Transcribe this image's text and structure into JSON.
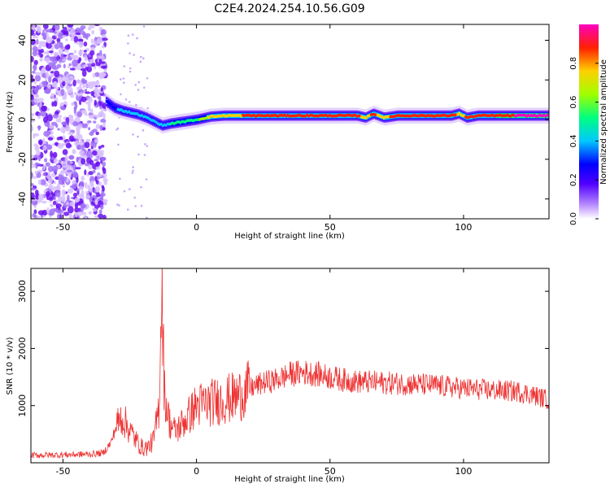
{
  "figure_title": "C2E4.2024.254.10.56.G09",
  "chart_data": [
    {
      "type": "heatmap",
      "title": "C2E4.2024.254.10.56.G09",
      "xlabel": "Height of straight line (km)",
      "ylabel": "Frequency (Hz)",
      "xlim": [
        -62,
        132
      ],
      "ylim": [
        -50,
        48
      ],
      "x_ticks": [
        -50,
        0,
        50,
        100
      ],
      "y_ticks": [
        -40,
        -20,
        0,
        20,
        40
      ],
      "colorbar": {
        "label": "Normalized spectral amplitude",
        "range": [
          0,
          1
        ],
        "ticks": [
          0.0,
          0.2,
          0.4,
          0.6,
          0.8
        ],
        "colors": [
          "#ffffff",
          "#b080ff",
          "#5000ff",
          "#0000ff",
          "#00c8ff",
          "#00ff80",
          "#a0ff00",
          "#ffd000",
          "#ff2000",
          "#ff00c0"
        ]
      },
      "ridge": {
        "x": [
          -34,
          -31,
          -28,
          -25,
          -22,
          -19,
          -16,
          -13,
          -10,
          -5,
          0,
          5,
          10,
          20,
          30,
          40,
          50,
          55,
          60,
          63,
          66,
          70,
          75,
          80,
          85,
          90,
          95,
          98,
          101,
          105,
          110,
          120,
          132
        ],
        "frequency": [
          9,
          6,
          4.5,
          3.5,
          2.5,
          1,
          -1,
          -3,
          -2,
          -1,
          0,
          1.5,
          2,
          2,
          2,
          2,
          2,
          2,
          2,
          1,
          3,
          1,
          2,
          2,
          2,
          2,
          2,
          3,
          1,
          2,
          2,
          2,
          2
        ],
        "amplitude": [
          0.3,
          0.35,
          0.45,
          0.5,
          0.45,
          0.5,
          0.4,
          0.45,
          0.5,
          0.55,
          0.6,
          0.75,
          0.8,
          0.85,
          0.85,
          0.9,
          0.9,
          0.9,
          0.85,
          0.8,
          0.85,
          0.8,
          0.9,
          0.9,
          0.9,
          0.85,
          0.9,
          0.8,
          0.85,
          0.9,
          0.9,
          0.95,
          0.95
        ]
      },
      "noise_region_x": [
        -62,
        -34
      ]
    },
    {
      "type": "line",
      "xlabel": "Height of straight line (km)",
      "ylabel": "SNR (10 * v/v)",
      "xlim": [
        -62,
        132
      ],
      "ylim": [
        0,
        3400
      ],
      "x_ticks": [
        -50,
        0,
        50,
        100
      ],
      "y_ticks": [
        1000,
        2000,
        3000
      ],
      "color": "#ee3333",
      "series": [
        {
          "x": [
            -62,
            -50,
            -40,
            -35,
            -32,
            -30,
            -28,
            -26,
            -24,
            -22,
            -20,
            -18,
            -16,
            -14,
            -13,
            -12,
            -10,
            -8,
            -5,
            0,
            5,
            10,
            15,
            20,
            25,
            30,
            35,
            40,
            45,
            50,
            55,
            60,
            70,
            80,
            90,
            100,
            110,
            120,
            125,
            132
          ],
          "values": [
            130,
            140,
            150,
            170,
            350,
            650,
            800,
            650,
            500,
            350,
            250,
            280,
            400,
            1000,
            3300,
            1200,
            700,
            550,
            700,
            1000,
            1050,
            1100,
            1150,
            1300,
            1400,
            1450,
            1550,
            1580,
            1550,
            1500,
            1450,
            1420,
            1400,
            1380,
            1350,
            1300,
            1270,
            1250,
            1200,
            1100
          ]
        }
      ]
    }
  ]
}
